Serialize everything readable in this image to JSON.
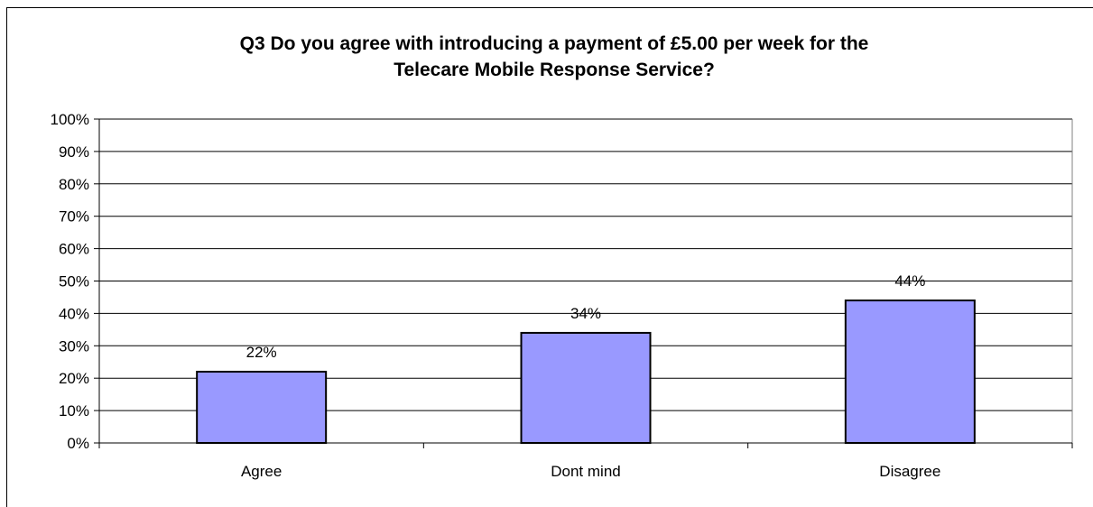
{
  "chart_data": {
    "type": "bar",
    "title_lines": [
      "Q3 Do you agree with introducing a payment of £5.00 per week for the",
      "Telecare Mobile Response Service?"
    ],
    "categories": [
      "Agree",
      "Dont mind",
      "Disagree"
    ],
    "values": [
      22,
      34,
      44
    ],
    "data_labels": [
      "22%",
      "34%",
      "44%"
    ],
    "ylim": [
      0,
      100
    ],
    "y_ticks": [
      "0%",
      "10%",
      "20%",
      "30%",
      "40%",
      "50%",
      "60%",
      "70%",
      "80%",
      "90%",
      "100%"
    ],
    "grid": true,
    "legend": "none",
    "bar_color": "#9999ff",
    "bar_edge_color": "#000000"
  }
}
